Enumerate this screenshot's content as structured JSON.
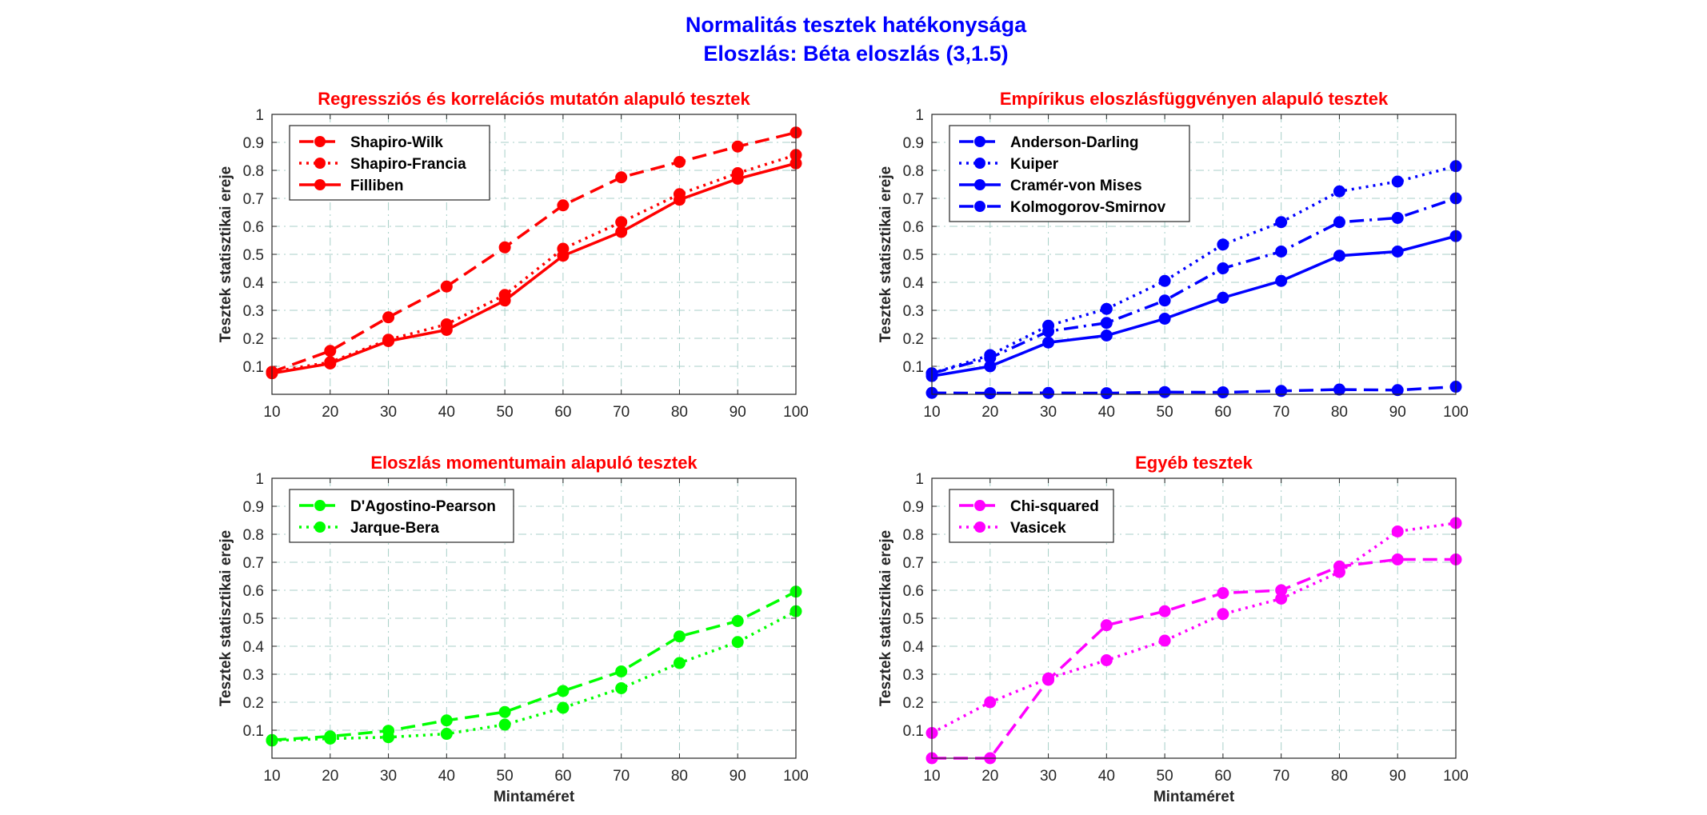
{
  "figure": {
    "title_line1": "Normalitás tesztek hatékonysága",
    "title_line2": "Eloszlás: Béta eloszlás (3,1.5)",
    "title_color": "#0000ff",
    "panel_title_color": "#ff0000"
  },
  "chart_data": [
    {
      "type": "line",
      "title": "Regressziós és korrelációs mutatón alapuló tesztek",
      "xlabel": "",
      "ylabel": "Tesztek statisztikai ereje",
      "x": [
        10,
        20,
        30,
        40,
        50,
        60,
        70,
        80,
        90,
        100
      ],
      "xlim": [
        10,
        100
      ],
      "ylim": [
        0,
        1
      ],
      "x_ticks": [
        "10",
        "20",
        "30",
        "40",
        "50",
        "60",
        "70",
        "80",
        "90",
        "100"
      ],
      "y_ticks": [
        "0.1",
        "0.2",
        "0.3",
        "0.4",
        "0.5",
        "0.6",
        "0.7",
        "0.8",
        "0.9",
        "1"
      ],
      "grid": true,
      "legend": "top-left",
      "series": [
        {
          "name": "Shapiro-Wilk",
          "color": "#ff0000",
          "line_style": "dashed",
          "values": [
            0.08,
            0.155,
            0.275,
            0.385,
            0.525,
            0.675,
            0.775,
            0.83,
            0.885,
            0.935
          ]
        },
        {
          "name": "Shapiro-Francia",
          "color": "#ff0000",
          "line_style": "dotted",
          "values": [
            0.08,
            0.115,
            0.195,
            0.25,
            0.355,
            0.52,
            0.615,
            0.715,
            0.79,
            0.855
          ]
        },
        {
          "name": "Filliben",
          "color": "#ff0000",
          "line_style": "solid",
          "values": [
            0.075,
            0.11,
            0.19,
            0.23,
            0.335,
            0.495,
            0.58,
            0.695,
            0.77,
            0.825
          ]
        }
      ]
    },
    {
      "type": "line",
      "title": "Empírikus eloszlásfüggvényen alapuló tesztek",
      "xlabel": "",
      "ylabel": "Tesztek statisztikai ereje",
      "x": [
        10,
        20,
        30,
        40,
        50,
        60,
        70,
        80,
        90,
        100
      ],
      "xlim": [
        10,
        100
      ],
      "ylim": [
        0,
        1
      ],
      "x_ticks": [
        "10",
        "20",
        "30",
        "40",
        "50",
        "60",
        "70",
        "80",
        "90",
        "100"
      ],
      "y_ticks": [
        "0.1",
        "0.2",
        "0.3",
        "0.4",
        "0.5",
        "0.6",
        "0.7",
        "0.8",
        "0.9",
        "1"
      ],
      "grid": true,
      "legend": "top-left",
      "series": [
        {
          "name": "Anderson-Darling",
          "color": "#0000ff",
          "line_style": "dashed",
          "values": [
            0.005,
            0.004,
            0.005,
            0.004,
            0.008,
            0.007,
            0.012,
            0.017,
            0.015,
            0.027
          ]
        },
        {
          "name": "Kuiper",
          "color": "#0000ff",
          "line_style": "dotted",
          "values": [
            0.075,
            0.14,
            0.245,
            0.305,
            0.405,
            0.535,
            0.615,
            0.725,
            0.76,
            0.815
          ]
        },
        {
          "name": "Cramér-von Mises",
          "color": "#0000ff",
          "line_style": "solid",
          "values": [
            0.065,
            0.1,
            0.185,
            0.21,
            0.27,
            0.345,
            0.405,
            0.495,
            0.51,
            0.565
          ]
        },
        {
          "name": "Kolmogorov-Smirnov",
          "color": "#0000ff",
          "line_style": "dashdot",
          "values": [
            0.075,
            0.13,
            0.225,
            0.255,
            0.335,
            0.45,
            0.51,
            0.615,
            0.63,
            0.7
          ]
        }
      ]
    },
    {
      "type": "line",
      "title": "Eloszlás momentumain alapuló tesztek",
      "xlabel": "Mintaméret",
      "ylabel": "Tesztek statisztikai ereje",
      "x": [
        10,
        20,
        30,
        40,
        50,
        60,
        70,
        80,
        90,
        100
      ],
      "xlim": [
        10,
        100
      ],
      "ylim": [
        0,
        1
      ],
      "x_ticks": [
        "10",
        "20",
        "30",
        "40",
        "50",
        "60",
        "70",
        "80",
        "90",
        "100"
      ],
      "y_ticks": [
        "0.1",
        "0.2",
        "0.3",
        "0.4",
        "0.5",
        "0.6",
        "0.7",
        "0.8",
        "0.9",
        "1"
      ],
      "grid": true,
      "legend": "top-left",
      "series": [
        {
          "name": "D'Agostino-Pearson",
          "color": "#00ff00",
          "line_style": "dashed",
          "values": [
            0.065,
            0.078,
            0.098,
            0.135,
            0.165,
            0.24,
            0.31,
            0.435,
            0.49,
            0.595
          ]
        },
        {
          "name": "Jarque-Bera",
          "color": "#00ff00",
          "line_style": "dotted",
          "values": [
            0.063,
            0.07,
            0.075,
            0.087,
            0.12,
            0.18,
            0.25,
            0.34,
            0.415,
            0.525
          ]
        }
      ]
    },
    {
      "type": "line",
      "title": "Egyéb tesztek",
      "xlabel": "Mintaméret",
      "ylabel": "Tesztek statisztikai ereje",
      "x": [
        10,
        20,
        30,
        40,
        50,
        60,
        70,
        80,
        90,
        100
      ],
      "xlim": [
        10,
        100
      ],
      "ylim": [
        0,
        1
      ],
      "x_ticks": [
        "10",
        "20",
        "30",
        "40",
        "50",
        "60",
        "70",
        "80",
        "90",
        "100"
      ],
      "y_ticks": [
        "0.1",
        "0.2",
        "0.3",
        "0.4",
        "0.5",
        "0.6",
        "0.7",
        "0.8",
        "0.9",
        "1"
      ],
      "grid": true,
      "legend": "top-left",
      "series": [
        {
          "name": "Chi-squared",
          "color": "#ff00ff",
          "line_style": "dashed",
          "values": [
            0.0,
            0.0,
            0.28,
            0.475,
            0.525,
            0.59,
            0.6,
            0.685,
            0.71,
            0.71
          ]
        },
        {
          "name": "Vasicek",
          "color": "#ff00ff",
          "line_style": "dotted",
          "values": [
            0.09,
            0.2,
            0.285,
            0.35,
            0.42,
            0.515,
            0.57,
            0.665,
            0.81,
            0.84
          ]
        }
      ]
    }
  ]
}
